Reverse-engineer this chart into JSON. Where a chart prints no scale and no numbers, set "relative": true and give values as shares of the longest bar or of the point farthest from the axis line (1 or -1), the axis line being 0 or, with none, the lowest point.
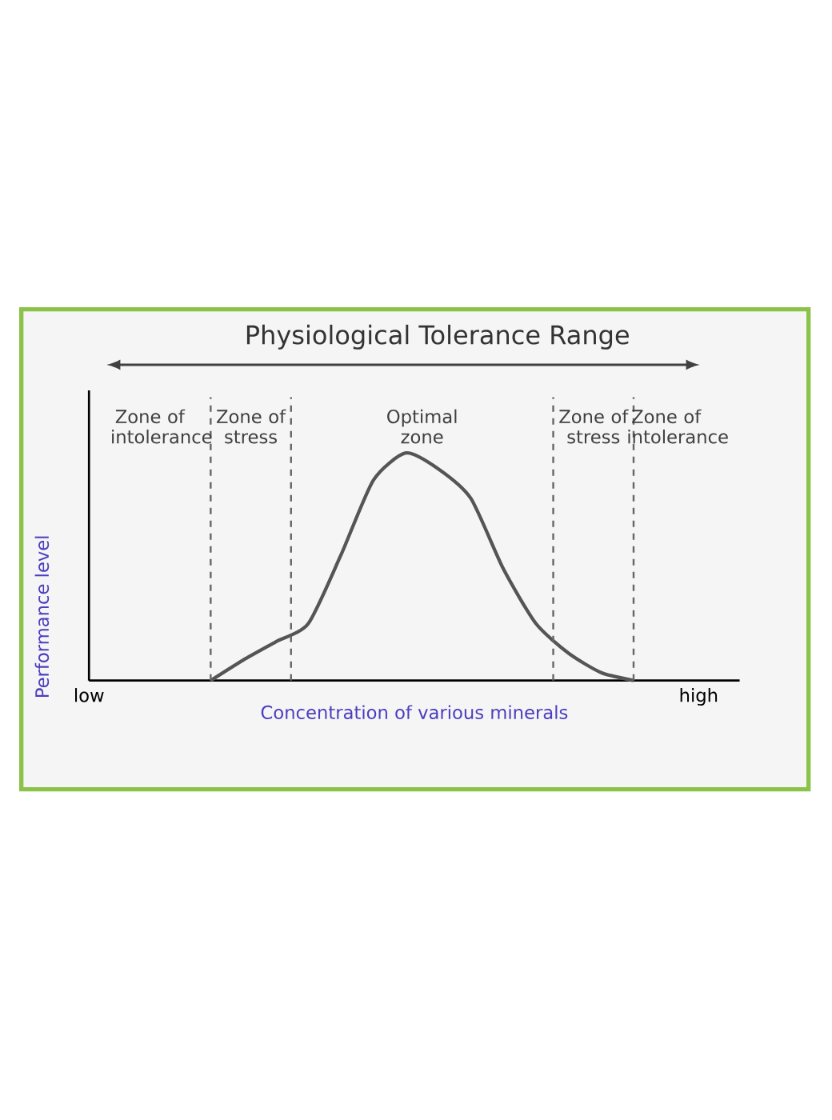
{
  "chart_data": {
    "type": "line",
    "relative": true,
    "title": "Physiological Tolerance Range",
    "xlabel": "Concentration of various minerals",
    "ylabel": "Performance level",
    "categories": [
      null,
      null,
      null,
      null,
      null,
      null,
      null,
      null,
      null,
      null,
      null,
      null,
      null,
      null,
      null,
      null,
      null,
      null,
      null,
      null
    ],
    "values": [
      null,
      null,
      null,
      0,
      0.09,
      0.17,
      0.25,
      0.55,
      0.88,
      1,
      0.93,
      0.8,
      0.49,
      0.25,
      0.12,
      0.035,
      0,
      null,
      null,
      null
    ],
    "color": "#555555",
    "marker": "none",
    "line_style": "solid",
    "annotations": [
      "Zone of intolerance",
      "Zone of stress",
      "Optimal zone",
      "Zone of stress",
      "Zone of intolerance",
      "low",
      "high"
    ]
  }
}
